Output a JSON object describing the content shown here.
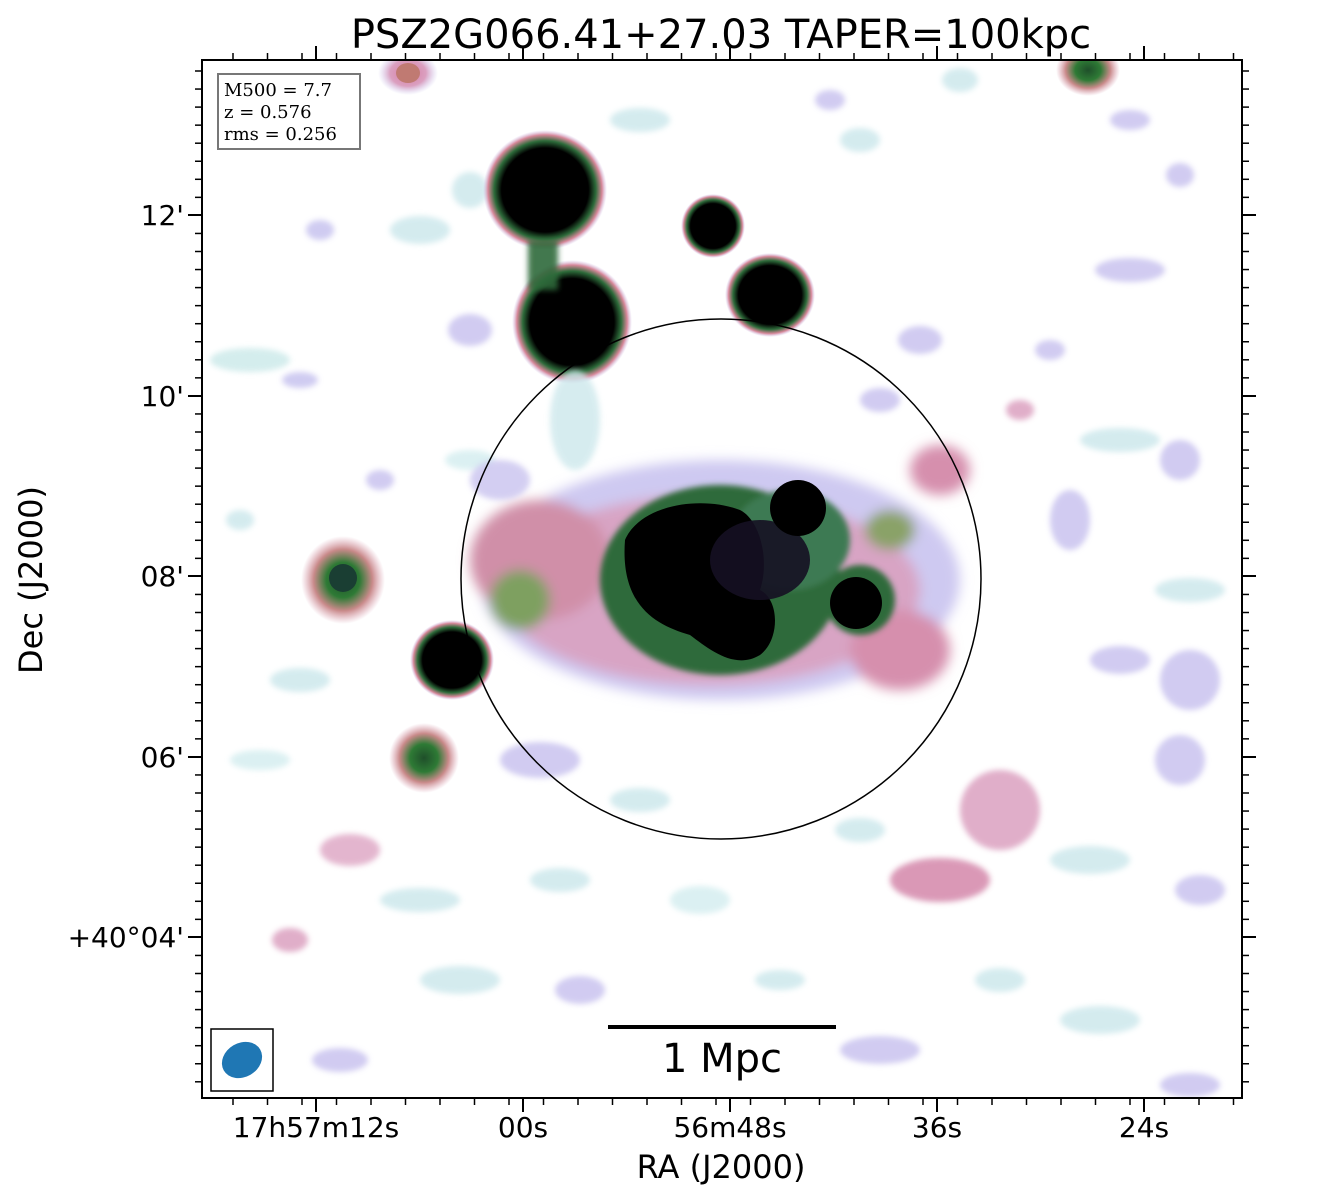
{
  "figure": {
    "title": "PSZ2G066.41+27.03 TAPER=100kpc",
    "xlabel": "RA (J2000)",
    "ylabel": "Dec (J2000)",
    "x_ticks": [
      "17h57m12s",
      "00s",
      "56m48s",
      "36s",
      "24s"
    ],
    "y_ticks": [
      "12'",
      "10'",
      "08'",
      "06'",
      "+40°04'"
    ],
    "info_box": {
      "line1": "M500 = 7.7",
      "line2": "z = 0.576",
      "line3": "rms = 0.256"
    },
    "scale_bar_label": "1 Mpc",
    "beam_color": "#1f77b4",
    "colormap": "cubehelix-like (white → light blue → lavender → pink → green → black)"
  }
}
